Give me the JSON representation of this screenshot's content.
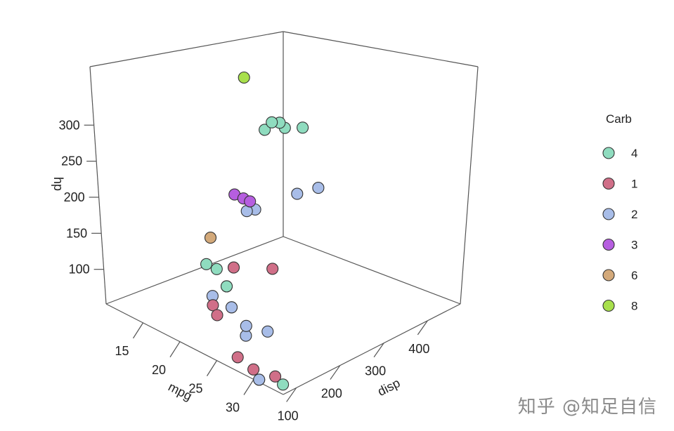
{
  "chart_data": {
    "type": "scatter",
    "projection": "3d",
    "xlabel": "mpg",
    "ylabel": "disp",
    "zlabel": "hp",
    "x_ticks": [
      "15",
      "20",
      "25",
      "30"
    ],
    "y_ticks": [
      "100",
      "200",
      "300",
      "400"
    ],
    "z_ticks": [
      "100",
      "150",
      "200",
      "250",
      "300"
    ],
    "xlim": [
      10,
      34
    ],
    "ylim": [
      70,
      475
    ],
    "zlim": [
      52,
      335
    ],
    "legend": {
      "title": "Carb",
      "position": "right",
      "entries": [
        {
          "label": "4",
          "color": "#8fdcbf"
        },
        {
          "label": "1",
          "color": "#d06f88"
        },
        {
          "label": "2",
          "color": "#a8bde8"
        },
        {
          "label": "3",
          "color": "#b65ee0"
        },
        {
          "label": "6",
          "color": "#d3a97a"
        },
        {
          "label": "8",
          "color": "#a8e04c"
        }
      ]
    },
    "series": [
      {
        "name": "4",
        "points": [
          [
            21.0,
            160,
            110
          ],
          [
            21.0,
            160,
            110
          ],
          [
            22.8,
            140.8,
            95
          ],
          [
            19.2,
            167.6,
            123
          ],
          [
            17.8,
            167.6,
            123
          ],
          [
            30.4,
            75.7,
            52
          ],
          [
            33.9,
            71.1,
            65
          ],
          [
            15.8,
            351,
            264
          ],
          [
            10.4,
            472,
            205
          ],
          [
            10.4,
            460,
            215
          ],
          [
            14.7,
            440,
            230
          ],
          [
            14.3,
            360,
            245
          ]
        ]
      },
      {
        "name": "1",
        "points": [
          [
            22.8,
            108,
            93
          ],
          [
            21.4,
            258,
            110
          ],
          [
            18.1,
            225,
            105
          ],
          [
            32.4,
            78.7,
            66
          ],
          [
            27.3,
            79,
            66
          ],
          [
            21.5,
            120.1,
            97
          ],
          [
            29.9,
            71.1,
            65
          ]
        ]
      },
      {
        "name": "2",
        "points": [
          [
            18.7,
            360,
            175
          ],
          [
            24.4,
            146.7,
            62
          ],
          [
            22.8,
            140.8,
            95
          ],
          [
            30.4,
            75.7,
            52
          ],
          [
            15.5,
            318,
            150
          ],
          [
            15.2,
            304,
            150
          ],
          [
            19.2,
            400,
            175
          ],
          [
            26.0,
            120.3,
            91
          ],
          [
            30.4,
            95.1,
            113
          ],
          [
            21.4,
            121,
            109
          ]
        ]
      },
      {
        "name": "3",
        "points": [
          [
            16.4,
            275.8,
            180
          ],
          [
            17.3,
            275.8,
            180
          ],
          [
            15.2,
            275.8,
            180
          ]
        ]
      },
      {
        "name": "6",
        "points": [
          [
            19.7,
            145,
            175
          ]
        ]
      },
      {
        "name": "8",
        "points": [
          [
            15.0,
            301,
            335
          ]
        ]
      }
    ]
  },
  "watermark": "知乎 @知足自信"
}
